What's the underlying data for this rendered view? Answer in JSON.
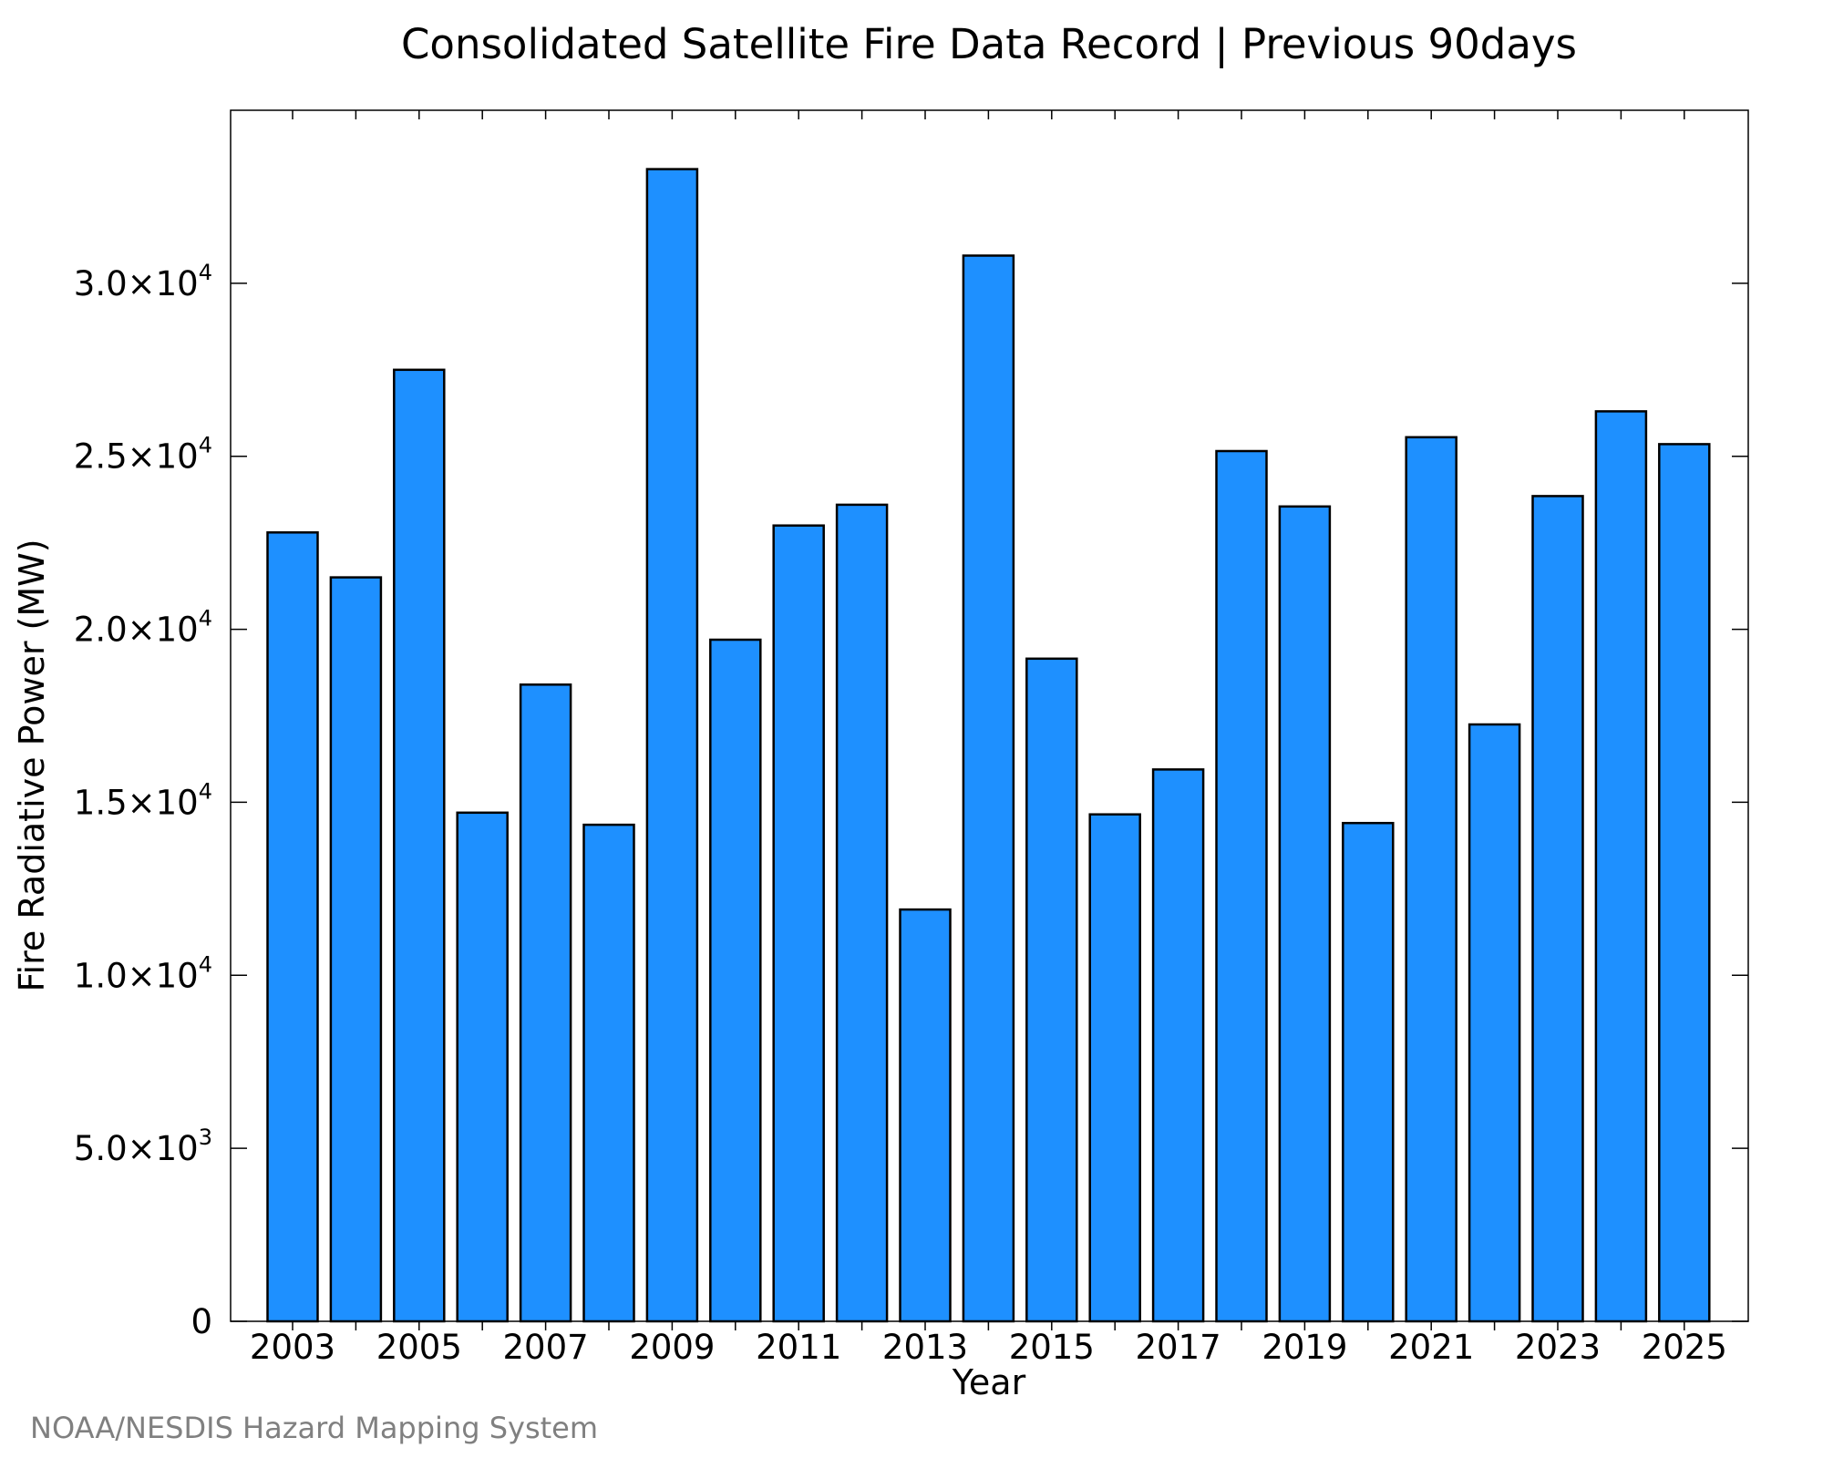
{
  "chart_data": {
    "type": "bar",
    "title": "Consolidated Satellite Fire Data Record | Previous 90days",
    "xlabel": "Year",
    "ylabel": "Fire Radiative Power (MW)",
    "categories": [
      "2003",
      "2004",
      "2005",
      "2006",
      "2007",
      "2008",
      "2009",
      "2010",
      "2011",
      "2012",
      "2013",
      "2014",
      "2015",
      "2016",
      "2017",
      "2018",
      "2019",
      "2020",
      "2021",
      "2022",
      "2023",
      "2024",
      "2025"
    ],
    "values": [
      22800,
      21500,
      27500,
      14700,
      18400,
      14350,
      33300,
      19700,
      23000,
      23600,
      11900,
      30800,
      19150,
      14650,
      15950,
      25150,
      23550,
      14400,
      25550,
      17250,
      23850,
      26300,
      25350
    ],
    "x_tick_labels": [
      "2003",
      "2005",
      "2007",
      "2009",
      "2011",
      "2013",
      "2015",
      "2017",
      "2019",
      "2021",
      "2023",
      "2025"
    ],
    "y_ticks": [
      {
        "value": 0,
        "mantissa": "0",
        "exponent": ""
      },
      {
        "value": 5000,
        "mantissa": "5.0×10",
        "exponent": "3"
      },
      {
        "value": 10000,
        "mantissa": "1.0×10",
        "exponent": "4"
      },
      {
        "value": 15000,
        "mantissa": "1.5×10",
        "exponent": "4"
      },
      {
        "value": 20000,
        "mantissa": "2.0×10",
        "exponent": "4"
      },
      {
        "value": 25000,
        "mantissa": "2.5×10",
        "exponent": "4"
      },
      {
        "value": 30000,
        "mantissa": "3.0×10",
        "exponent": "4"
      }
    ],
    "ylim": [
      0,
      35000
    ],
    "grid": false,
    "bar_color": "#1e90ff",
    "bar_edge_color": "#000000"
  },
  "credit": "NOAA/NESDIS Hazard Mapping System"
}
